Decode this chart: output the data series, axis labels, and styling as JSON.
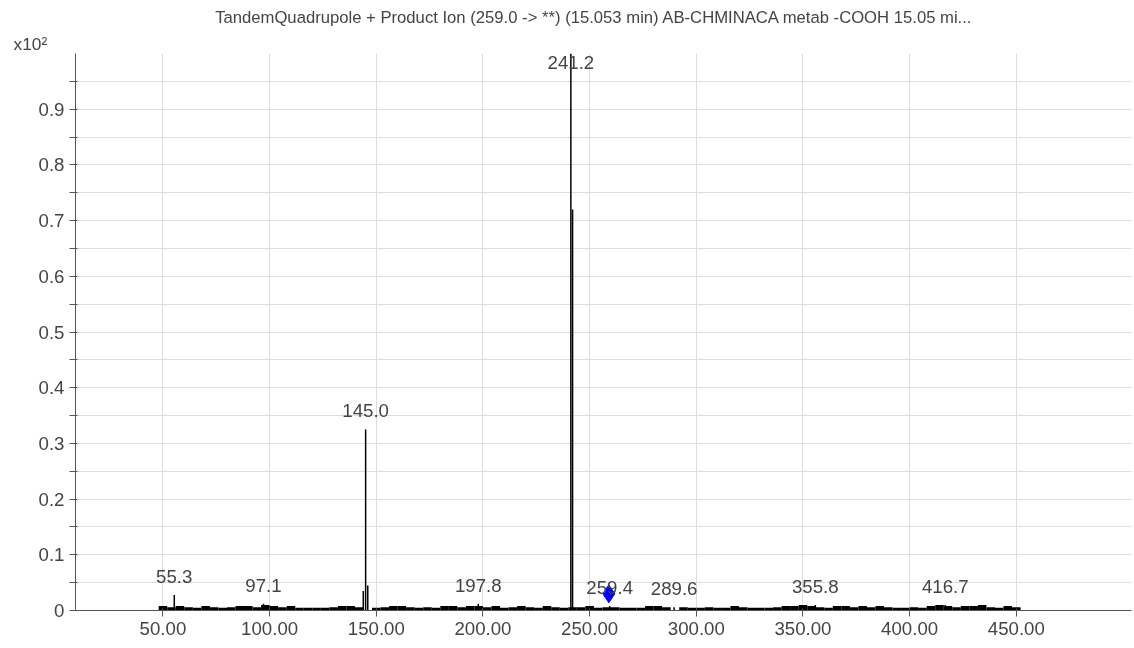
{
  "chart_data": {
    "type": "bar",
    "title": "TandemQuadrupole + Product Ion  (259.0 -> **)  (15.053 min) AB-CHMINACA  metab -COOH  15.05 mi...",
    "ylabel": "x10²",
    "xlim": [
      9,
      504
    ],
    "xticks": [
      {
        "value": 50,
        "label": "50.00"
      },
      {
        "value": 100,
        "label": "100.00"
      },
      {
        "value": 150,
        "label": "150.00"
      },
      {
        "value": 200,
        "label": "200.00"
      },
      {
        "value": 250,
        "label": "250.00"
      },
      {
        "value": 300,
        "label": "300.00"
      },
      {
        "value": 350,
        "label": "350.00"
      },
      {
        "value": 400,
        "label": "400.00"
      },
      {
        "value": 450,
        "label": "450.00"
      }
    ],
    "ylim": [
      0,
      1.0
    ],
    "yticks": [
      0,
      {
        "value": 0.05,
        "label": null
      },
      0.1,
      {
        "value": 0.15,
        "label": null
      },
      0.2,
      {
        "value": 0.25,
        "label": null
      },
      0.3,
      {
        "value": 0.35,
        "label": null
      },
      0.4,
      {
        "value": 0.45,
        "label": null
      },
      0.5,
      {
        "value": 0.55,
        "label": null
      },
      0.6,
      {
        "value": 0.65,
        "label": null
      },
      0.7,
      {
        "value": 0.75,
        "label": null
      },
      0.8,
      {
        "value": 0.85,
        "label": null
      },
      0.9,
      {
        "value": 0.95,
        "label": null
      }
    ],
    "grid": true,
    "series": [
      {
        "color": "#000000",
        "x": [
          50,
          54,
          58,
          62,
          66,
          70,
          74,
          78,
          82,
          86,
          90,
          94,
          98,
          102,
          106,
          110,
          114,
          118,
          122,
          126,
          130,
          134,
          138,
          142,
          146,
          150,
          154,
          158,
          162,
          166,
          170,
          174,
          178,
          182,
          186,
          190,
          194,
          198,
          202,
          206,
          210,
          214,
          218,
          222,
          226,
          230,
          234,
          238,
          242,
          246,
          250,
          254,
          258,
          262,
          266,
          270,
          274,
          278,
          282,
          286,
          290,
          294,
          298,
          302,
          306,
          310,
          314,
          318,
          322,
          326,
          330,
          334,
          338,
          342,
          346,
          350,
          354,
          358,
          362,
          366,
          370,
          374,
          378,
          382,
          386,
          390,
          394,
          398,
          402,
          406,
          410,
          414,
          418,
          422,
          426,
          430,
          434,
          438,
          442,
          446,
          450
        ],
        "values": [
          0.008,
          0.006,
          0.008,
          0.006,
          0.005,
          0.008,
          0.006,
          0.005,
          0.006,
          0.008,
          0.008,
          0.006,
          0.01,
          0.008,
          0.006,
          0.008,
          0.005,
          0.005,
          0.005,
          0.005,
          0.006,
          0.008,
          0.008,
          0.006,
          null,
          0.005,
          0.006,
          0.008,
          0.008,
          0.006,
          0.005,
          0.006,
          0.005,
          0.008,
          0.008,
          0.006,
          0.008,
          0.008,
          0.006,
          0.008,
          0.005,
          0.006,
          0.008,
          0.006,
          0.005,
          0.008,
          0.006,
          0.005,
          0.006,
          0.006,
          0.008,
          0.005,
          0.006,
          0.006,
          0.005,
          0.005,
          0.005,
          0.008,
          0.008,
          0.006,
          null,
          0.006,
          0.005,
          0.005,
          0.006,
          0.005,
          0.005,
          0.008,
          0.006,
          0.005,
          0.005,
          0.005,
          0.006,
          0.008,
          0.008,
          0.01,
          0.008,
          0.006,
          0.005,
          0.008,
          0.008,
          0.006,
          0.008,
          0.006,
          0.008,
          0.006,
          0.005,
          0.005,
          0.006,
          0.005,
          0.008,
          0.01,
          0.008,
          0.006,
          0.008,
          0.008,
          0.01,
          0.006,
          0.005,
          0.008,
          0.006
        ]
      },
      {
        "color": "#000000",
        "x": [
          55.3,
          97.1,
          143.9,
          145.0,
          146.0,
          197.8,
          241.2,
          242.0,
          259.4,
          289.6,
          355.8,
          416.7
        ],
        "values": [
          0.028,
          0.012,
          0.035,
          0.325,
          0.045,
          0.012,
          1.0,
          0.72,
          0.008,
          0.006,
          0.01,
          0.01
        ]
      },
      {
        "type": "scatter",
        "marker": "diamond",
        "color": "#0000ff",
        "x": [
          259.0
        ],
        "values": [
          0.03
        ]
      }
    ],
    "annotations": [
      {
        "text": "55.3",
        "x": 55.3,
        "y": 0.028
      },
      {
        "text": "97.1",
        "x": 97.1,
        "y": 0.012
      },
      {
        "text": "145.0",
        "x": 145.0,
        "y": 0.325
      },
      {
        "text": "197.8",
        "x": 197.8,
        "y": 0.012
      },
      {
        "text": "241.2",
        "x": 241.2,
        "y": 1.0
      },
      {
        "text": "259.4",
        "x": 259.4,
        "y": 0.008
      },
      {
        "text": "289.6",
        "x": 289.6,
        "y": 0.006
      },
      {
        "text": "355.8",
        "x": 355.8,
        "y": 0.01
      },
      {
        "text": "416.7",
        "x": 416.7,
        "y": 0.01
      }
    ]
  }
}
